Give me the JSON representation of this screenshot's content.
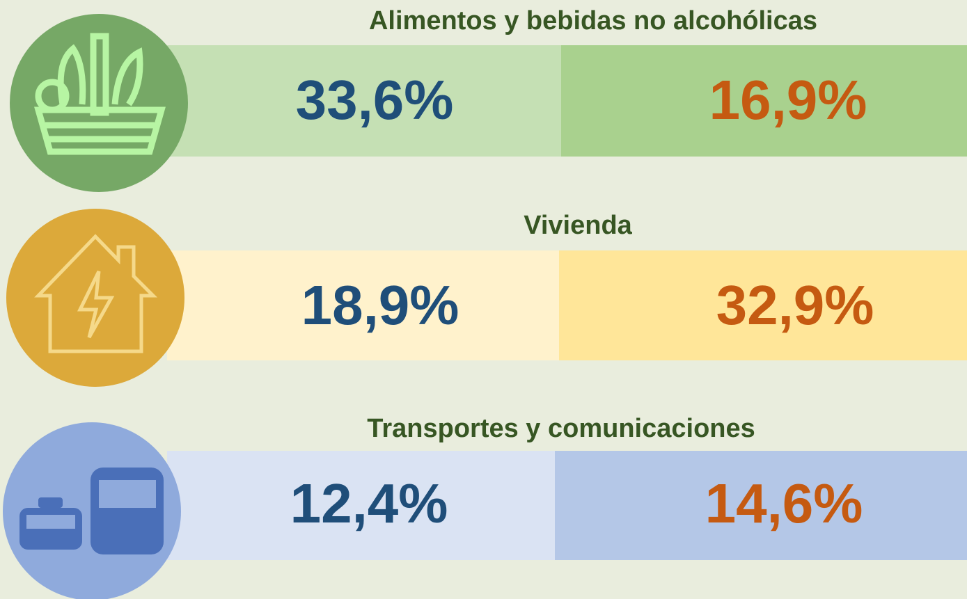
{
  "rows": [
    {
      "title": "Alimentos y bebidas no alcohólicas",
      "left": "33,6%",
      "right": "16,9%"
    },
    {
      "title": "Vivienda",
      "left": "18,9%",
      "right": "32,9%"
    },
    {
      "title": "Transportes y comunicaciones",
      "left": "12,4%",
      "right": "14,6%"
    }
  ]
}
